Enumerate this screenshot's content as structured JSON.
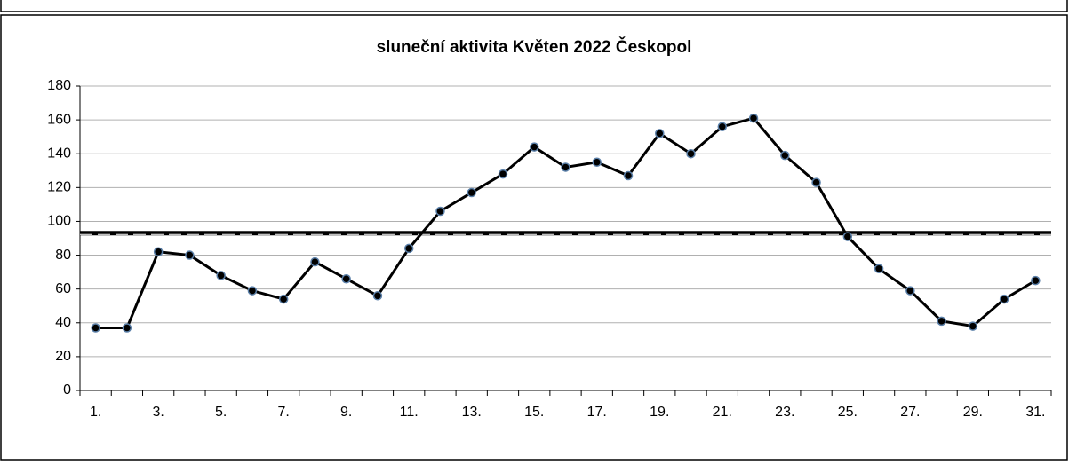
{
  "chart_data": {
    "type": "line",
    "title": "sluneční aktivita Květen 2022 Českopol",
    "categories": [
      "1.",
      null,
      "3.",
      null,
      "5.",
      null,
      "7.",
      null,
      "9.",
      null,
      "11.",
      null,
      "13.",
      null,
      "15.",
      null,
      "17.",
      null,
      "19.",
      null,
      "21.",
      null,
      "23.",
      null,
      "25.",
      null,
      "27.",
      null,
      "29.",
      null,
      "31."
    ],
    "series": [
      {
        "color": "#000000",
        "marker_color": "#000000",
        "marker_edge": "#5a7fa8",
        "values": [
          37,
          37,
          82,
          80,
          68,
          59,
          54,
          76,
          66,
          56,
          84,
          106,
          117,
          128,
          144,
          132,
          135,
          127,
          152,
          140,
          156,
          161,
          139,
          123,
          91,
          72,
          59,
          41,
          38,
          54,
          65
        ]
      }
    ],
    "reference_line": {
      "value": 93,
      "color": "#000000"
    },
    "ylim": [
      0,
      180
    ],
    "yticks": [
      0,
      20,
      40,
      60,
      80,
      100,
      120,
      140,
      160,
      180
    ],
    "grid": true
  }
}
